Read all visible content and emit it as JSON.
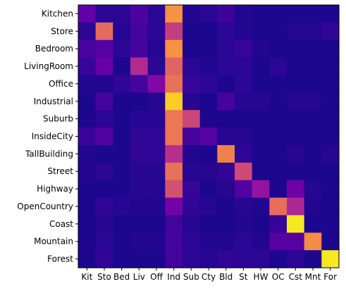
{
  "chart_data": {
    "type": "heatmap",
    "title": "",
    "xlabel": "",
    "ylabel": "",
    "x_categories": [
      "Kit",
      "Sto",
      "Bed",
      "Liv",
      "Off",
      "Ind",
      "Sub",
      "Cty",
      "Bld",
      "St",
      "HW",
      "OC",
      "Cst",
      "Mnt",
      "For"
    ],
    "y_categories": [
      "Kitchen",
      "Store",
      "Bedroom",
      "LivingRoom",
      "Office",
      "Industrial",
      "Suburb",
      "InsideCity",
      "TallBuilding",
      "Street",
      "Highway",
      "OpenCountry",
      "Coast",
      "Mountain",
      "Forest"
    ],
    "colormap": "plasma",
    "value_range": [
      0,
      1
    ],
    "values": [
      [
        0.18,
        0.06,
        0.06,
        0.13,
        0.06,
        0.74,
        0.04,
        0.06,
        0.09,
        0.04,
        0.03,
        0.03,
        0.03,
        0.03,
        0.03
      ],
      [
        0.06,
        0.62,
        0.05,
        0.11,
        0.06,
        0.47,
        0.03,
        0.03,
        0.06,
        0.04,
        0.03,
        0.03,
        0.05,
        0.05,
        0.07
      ],
      [
        0.12,
        0.15,
        0.06,
        0.11,
        0.05,
        0.74,
        0.03,
        0.03,
        0.06,
        0.08,
        0.04,
        0.03,
        0.03,
        0.03,
        0.03
      ],
      [
        0.08,
        0.19,
        0.03,
        0.4,
        0.06,
        0.6,
        0.06,
        0.04,
        0.06,
        0.06,
        0.03,
        0.06,
        0.03,
        0.03,
        0.03
      ],
      [
        0.04,
        0.04,
        0.07,
        0.11,
        0.26,
        0.64,
        0.08,
        0.06,
        0.03,
        0.06,
        0.03,
        0.03,
        0.03,
        0.03,
        0.03
      ],
      [
        0.03,
        0.11,
        0.03,
        0.03,
        0.05,
        0.9,
        0.05,
        0.03,
        0.11,
        0.05,
        0.05,
        0.03,
        0.05,
        0.05,
        0.03
      ],
      [
        0.03,
        0.06,
        0.03,
        0.05,
        0.05,
        0.66,
        0.5,
        0.03,
        0.03,
        0.03,
        0.03,
        0.03,
        0.03,
        0.03,
        0.03
      ],
      [
        0.09,
        0.14,
        0.03,
        0.07,
        0.07,
        0.66,
        0.11,
        0.15,
        0.05,
        0.05,
        0.03,
        0.03,
        0.03,
        0.03,
        0.03
      ],
      [
        0.04,
        0.03,
        0.03,
        0.07,
        0.07,
        0.42,
        0.04,
        0.03,
        0.69,
        0.07,
        0.03,
        0.03,
        0.05,
        0.03,
        0.05
      ],
      [
        0.04,
        0.06,
        0.03,
        0.05,
        0.05,
        0.64,
        0.05,
        0.05,
        0.07,
        0.51,
        0.03,
        0.03,
        0.03,
        0.03,
        0.03
      ],
      [
        0.03,
        0.03,
        0.03,
        0.05,
        0.05,
        0.53,
        0.08,
        0.03,
        0.05,
        0.14,
        0.32,
        0.03,
        0.21,
        0.05,
        0.03
      ],
      [
        0.03,
        0.07,
        0.05,
        0.04,
        0.04,
        0.22,
        0.07,
        0.05,
        0.03,
        0.05,
        0.04,
        0.63,
        0.39,
        0.04,
        0.03
      ],
      [
        0.03,
        0.05,
        0.03,
        0.03,
        0.03,
        0.1,
        0.05,
        0.03,
        0.03,
        0.04,
        0.03,
        0.08,
        0.96,
        0.03,
        0.03
      ],
      [
        0.03,
        0.06,
        0.03,
        0.04,
        0.04,
        0.11,
        0.06,
        0.04,
        0.04,
        0.06,
        0.04,
        0.15,
        0.15,
        0.72,
        0.03
      ],
      [
        0.03,
        0.07,
        0.03,
        0.03,
        0.03,
        0.1,
        0.06,
        0.05,
        0.07,
        0.06,
        0.06,
        0.03,
        0.06,
        0.03,
        0.96
      ]
    ]
  }
}
